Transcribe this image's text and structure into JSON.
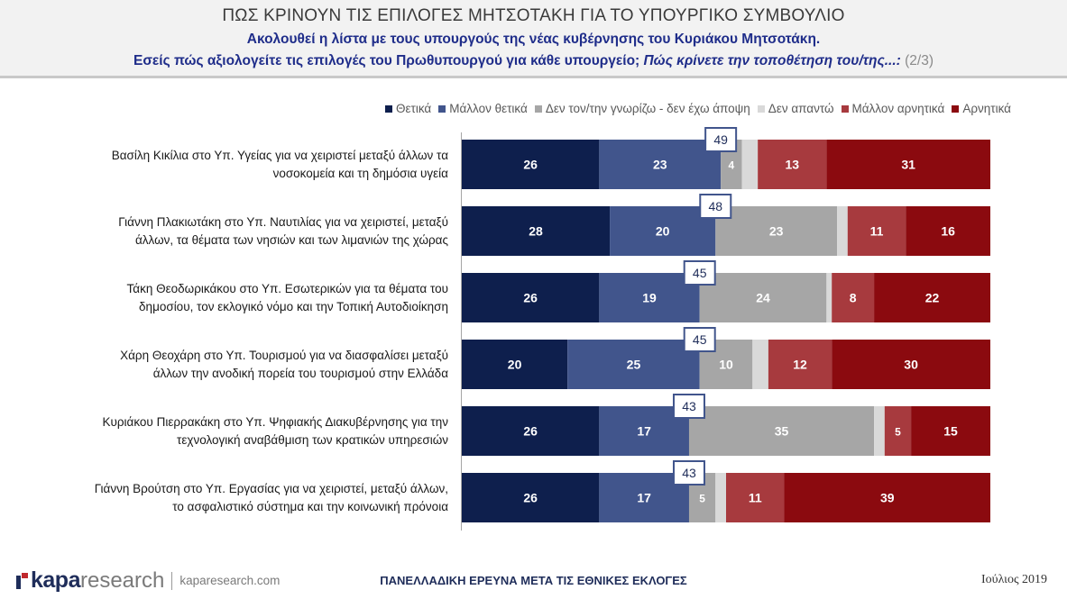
{
  "header": {
    "title": "ΠΩΣ ΚΡΙΝΟΥΝ ΤΙΣ ΕΠΙΛΟΓΕΣ ΜΗΤΣΟΤΑΚΗ ΓΙΑ ΤΟ ΥΠΟΥΡΓΙΚΟ ΣΥΜΒΟΥΛΙΟ",
    "subtitle1": "Ακολουθεί η λίστα με τους υπουργούς της νέας κυβέρνησης του Κυριάκου Μητσοτάκη.",
    "subtitle2_plain": "Εσείς πώς αξιολογείτε τις επιλογές του Πρωθυπουργού για κάθε υπουργείο;",
    "subtitle2_question": "Πώς κρίνετε την τοποθέτηση του/της...:",
    "subtitle2_page": "(2/3)"
  },
  "chart_data": {
    "type": "bar",
    "orientation": "horizontal",
    "stacked": true,
    "xlim": [
      0,
      100
    ],
    "grid": false,
    "legend_position": "top-right",
    "categories": [
      "Βασίλη Κικίλια στο Υπ. Υγείας για να χειριστεί μεταξύ άλλων τα νοσοκομεία και τη δημόσια υγεία",
      "Γιάννη Πλακιωτάκη στο Υπ. Ναυτιλίας για να χειριστεί, μεταξύ άλλων, τα θέματα των νησιών και των λιμανιών της χώρας",
      "Τάκη Θεοδωρικάκου στο Υπ. Εσωτερικών για τα θέματα του δημοσίου, τον εκλογικό νόμο και την Τοπική Αυτοδιοίκηση",
      "Χάρη Θεοχάρη στο Υπ. Τουρισμού για να διασφαλίσει μεταξύ άλλων την ανοδική πορεία του τουρισμού στην Ελλάδα",
      "Κυριάκου Πιερρακάκη στο Υπ. Ψηφιακής Διακυβέρνησης για την τεχνολογική αναβάθμιση των κρατικών υπηρεσιών",
      "Γιάννη Βρούτση στο Υπ. Εργασίας για να χειριστεί, μεταξύ άλλων, το ασφαλιστικό σύστημα και την κοινωνική πρόνοια"
    ],
    "label_lines": [
      [
        "Βασίλη Κικίλια στο Υπ. Υγείας για να χειριστεί μεταξύ άλλων τα",
        "νοσοκομεία και τη δημόσια υγεία"
      ],
      [
        "Γιάννη Πλακιωτάκη στο Υπ. Ναυτιλίας για να χειριστεί, μεταξύ",
        "άλλων, τα θέματα των νησιών και των λιμανιών της χώρας"
      ],
      [
        "Τάκη Θεοδωρικάκου στο Υπ. Εσωτερικών για τα θέματα του",
        "δημοσίου, τον εκλογικό νόμο και την Τοπική Αυτοδιοίκηση"
      ],
      [
        "Χάρη Θεοχάρη στο Υπ. Τουρισμού για να διασφαλίσει μεταξύ",
        "άλλων την ανοδική πορεία του τουρισμού στην Ελλάδα"
      ],
      [
        "Κυριάκου Πιερρακάκη στο Υπ. Ψηφιακής Διακυβέρνησης για την",
        "τεχνολογική αναβάθμιση των κρατικών υπηρεσιών"
      ],
      [
        "Γιάννη Βρούτση στο Υπ. Εργασίας για να χειριστεί, μεταξύ άλλων,",
        "το ασφαλιστικό σύστημα και την κοινωνική πρόνοια"
      ]
    ],
    "series": [
      {
        "name": "Θετικά",
        "color": "#0e1f4d",
        "text_color": "#ffffff",
        "values": [
          26,
          28,
          26,
          20,
          26,
          26
        ],
        "show_labels": [
          true,
          true,
          true,
          true,
          true,
          true
        ]
      },
      {
        "name": "Μάλλον θετικά",
        "color": "#41558c",
        "text_color": "#ffffff",
        "values": [
          23,
          20,
          19,
          25,
          17,
          17
        ],
        "show_labels": [
          true,
          true,
          true,
          true,
          true,
          true
        ]
      },
      {
        "name": "Δεν τον/την γνωρίζω - δεν έχω άποψη",
        "color": "#a6a6a6",
        "text_color": "#ffffff",
        "values": [
          4,
          23,
          24,
          10,
          35,
          5
        ],
        "show_labels": [
          true,
          true,
          true,
          true,
          true,
          true
        ]
      },
      {
        "name": "Δεν απαντώ",
        "color": "#d9d9d9",
        "text_color": "#ffffff",
        "values": [
          3,
          2,
          1,
          3,
          2,
          2
        ],
        "show_labels": [
          false,
          false,
          false,
          false,
          false,
          false
        ]
      },
      {
        "name": "Μάλλον αρνητικά",
        "color": "#a73a3e",
        "text_color": "#ffffff",
        "values": [
          13,
          11,
          8,
          12,
          5,
          11
        ],
        "show_labels": [
          true,
          true,
          true,
          true,
          true,
          true
        ]
      },
      {
        "name": "Αρνητικά",
        "color": "#8b0a0f",
        "text_color": "#ffffff",
        "values": [
          31,
          16,
          22,
          30,
          15,
          39
        ],
        "show_labels": [
          true,
          true,
          true,
          true,
          true,
          true
        ]
      }
    ],
    "positive_totals": [
      49,
      48,
      45,
      45,
      43,
      43
    ]
  },
  "footer": {
    "brand_bold": "kapa",
    "brand_light": "research",
    "url": "kaparesearch.com",
    "center": "ΠΑΝΕΛΛΑΔΙΚΗ ΕΡΕΥΝΑ ΜΕΤΑ ΤΙΣ ΕΘΝΙΚΕΣ ΕΚΛΟΓΕΣ",
    "date": "Ιούλιος 2019"
  }
}
